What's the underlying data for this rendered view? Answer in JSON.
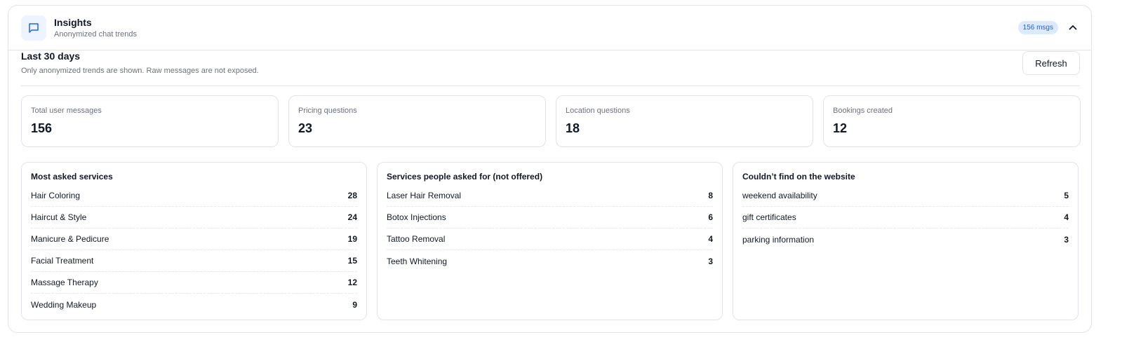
{
  "header": {
    "title": "Insights",
    "subtitle": "Anonymized chat trends",
    "badge": "156 msgs",
    "icon": "chat-bubble-icon",
    "accent": "#2563eb"
  },
  "section": {
    "title": "Last 30 days",
    "subtitle": "Only anonymized trends are shown. Raw messages are not exposed.",
    "refresh_label": "Refresh"
  },
  "stats": [
    {
      "label": "Total user messages",
      "value": "156"
    },
    {
      "label": "Pricing questions",
      "value": "23"
    },
    {
      "label": "Location questions",
      "value": "18"
    },
    {
      "label": "Bookings created",
      "value": "12"
    }
  ],
  "lists": [
    {
      "title": "Most asked services",
      "items": [
        {
          "label": "Hair Coloring",
          "count": "28"
        },
        {
          "label": "Haircut & Style",
          "count": "24"
        },
        {
          "label": "Manicure & Pedicure",
          "count": "19"
        },
        {
          "label": "Facial Treatment",
          "count": "15"
        },
        {
          "label": "Massage Therapy",
          "count": "12"
        },
        {
          "label": "Wedding Makeup",
          "count": "9"
        }
      ]
    },
    {
      "title": "Services people asked for (not offered)",
      "items": [
        {
          "label": "Laser Hair Removal",
          "count": "8"
        },
        {
          "label": "Botox Injections",
          "count": "6"
        },
        {
          "label": "Tattoo Removal",
          "count": "4"
        },
        {
          "label": "Teeth Whitening",
          "count": "3"
        }
      ]
    },
    {
      "title": "Couldn’t find on the website",
      "items": [
        {
          "label": "weekend availability",
          "count": "5"
        },
        {
          "label": "gift certificates",
          "count": "4"
        },
        {
          "label": "parking information",
          "count": "3"
        }
      ]
    }
  ]
}
